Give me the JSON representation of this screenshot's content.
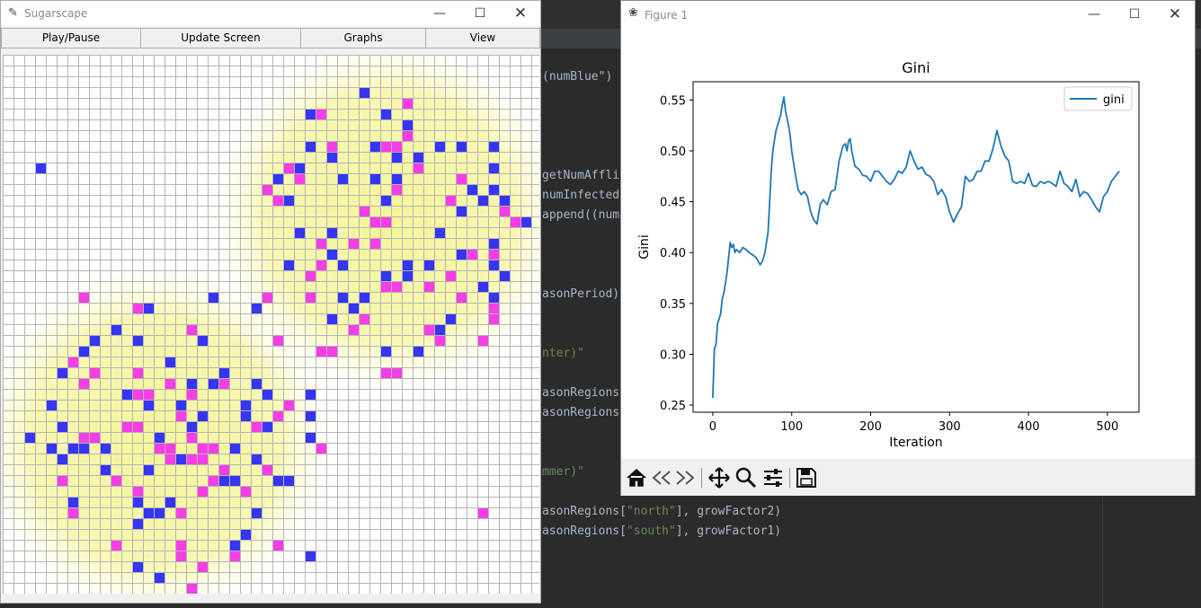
{
  "ide": {
    "code_lines": [
      {
        "text": "(numBlue\")",
        "str": ""
      },
      {
        "text": "getNumAffli",
        "str": ""
      },
      {
        "text": "numInfected",
        "str": ""
      },
      {
        "text": "append((num",
        "str": ""
      },
      {
        "text": "asonPeriod))",
        "str": ""
      },
      {
        "text": "",
        "str": "nter)\""
      },
      {
        "text": "asonRegions",
        "str": ""
      },
      {
        "text": "asonRegions",
        "str": ""
      },
      {
        "text": "",
        "str": "mmer)\""
      },
      {
        "text": "asonRegions[",
        "str": "\"north\"",
        "tail": "], growFactor2)"
      },
      {
        "text": "asonRegions[",
        "str": "\"south\"",
        "tail": "], growFactor1)"
      }
    ]
  },
  "sugarscape": {
    "title": "Sugarscape",
    "buttons": [
      "Play/Pause",
      "Update Screen",
      "Graphs",
      "View"
    ],
    "colors": {
      "blue_agent": "#3535f2",
      "pink_agent": "#f53ee6",
      "sugar_high": "#f5f59a",
      "sugar_low": "#ffffe6"
    },
    "grid": {
      "cols": 50,
      "rows": 50,
      "blue_cells": [
        [
          33,
          3
        ],
        [
          28,
          5
        ],
        [
          35,
          5
        ],
        [
          37,
          6
        ],
        [
          28,
          8
        ],
        [
          34,
          8
        ],
        [
          40,
          8
        ],
        [
          42,
          8
        ],
        [
          45,
          8
        ],
        [
          30,
          9
        ],
        [
          36,
          9
        ],
        [
          38,
          9
        ],
        [
          45,
          10
        ],
        [
          3,
          10
        ],
        [
          27,
          10
        ],
        [
          25,
          11
        ],
        [
          31,
          11
        ],
        [
          34,
          11
        ],
        [
          36,
          11
        ],
        [
          43,
          12
        ],
        [
          45,
          12
        ],
        [
          26,
          13
        ],
        [
          35,
          13
        ],
        [
          44,
          13
        ],
        [
          46,
          13
        ],
        [
          33,
          14
        ],
        [
          42,
          14
        ],
        [
          48,
          15
        ],
        [
          27,
          16
        ],
        [
          30,
          16
        ],
        [
          40,
          16
        ],
        [
          45,
          17
        ],
        [
          30,
          18
        ],
        [
          42,
          18
        ],
        [
          26,
          19
        ],
        [
          29,
          19
        ],
        [
          31,
          19
        ],
        [
          37,
          19
        ],
        [
          39,
          19
        ],
        [
          45,
          19
        ],
        [
          35,
          20
        ],
        [
          37,
          20
        ],
        [
          46,
          20
        ],
        [
          44,
          21
        ],
        [
          31,
          22
        ],
        [
          33,
          22
        ],
        [
          45,
          22
        ],
        [
          19,
          22
        ],
        [
          32,
          23
        ],
        [
          13,
          23
        ],
        [
          23,
          23
        ],
        [
          30,
          24
        ],
        [
          41,
          24
        ],
        [
          40,
          25
        ],
        [
          10,
          25
        ],
        [
          8,
          26
        ],
        [
          12,
          26
        ],
        [
          18,
          26
        ],
        [
          7,
          27
        ],
        [
          30,
          27
        ],
        [
          35,
          27
        ],
        [
          38,
          27
        ],
        [
          15,
          28
        ],
        [
          5,
          29
        ],
        [
          20,
          29
        ],
        [
          17,
          30
        ],
        [
          19,
          30
        ],
        [
          23,
          30
        ],
        [
          28,
          31
        ],
        [
          24,
          31
        ],
        [
          11,
          31
        ],
        [
          4,
          32
        ],
        [
          13,
          32
        ],
        [
          16,
          32
        ],
        [
          22,
          32
        ],
        [
          26,
          32
        ],
        [
          18,
          33
        ],
        [
          22,
          33
        ],
        [
          28,
          33
        ],
        [
          5,
          34
        ],
        [
          12,
          34
        ],
        [
          17,
          34
        ],
        [
          24,
          34
        ],
        [
          2,
          35
        ],
        [
          14,
          35
        ],
        [
          28,
          35
        ],
        [
          4,
          36
        ],
        [
          6,
          36
        ],
        [
          7,
          36
        ],
        [
          9,
          36
        ],
        [
          21,
          36
        ],
        [
          16,
          37
        ],
        [
          5,
          37
        ],
        [
          23,
          37
        ],
        [
          13,
          38
        ],
        [
          9,
          38
        ],
        [
          20,
          39
        ],
        [
          21,
          39
        ],
        [
          25,
          39
        ],
        [
          26,
          39
        ],
        [
          6,
          41
        ],
        [
          12,
          41
        ],
        [
          15,
          41
        ],
        [
          13,
          42
        ],
        [
          14,
          42
        ],
        [
          23,
          42
        ],
        [
          12,
          43
        ],
        [
          22,
          44
        ],
        [
          21,
          45
        ],
        [
          28,
          46
        ],
        [
          12,
          47
        ],
        [
          14,
          48
        ]
      ],
      "pink_cells": [
        [
          37,
          4
        ],
        [
          29,
          5
        ],
        [
          37,
          7
        ],
        [
          35,
          8
        ],
        [
          36,
          8
        ],
        [
          30,
          8
        ],
        [
          26,
          10
        ],
        [
          38,
          10
        ],
        [
          27,
          11
        ],
        [
          42,
          11
        ],
        [
          24,
          12
        ],
        [
          36,
          12
        ],
        [
          25,
          13
        ],
        [
          41,
          13
        ],
        [
          33,
          14
        ],
        [
          46,
          14
        ],
        [
          47,
          15
        ],
        [
          34,
          15
        ],
        [
          35,
          15
        ],
        [
          29,
          17
        ],
        [
          32,
          17
        ],
        [
          34,
          17
        ],
        [
          43,
          18
        ],
        [
          45,
          18
        ],
        [
          29,
          19
        ],
        [
          28,
          20
        ],
        [
          41,
          20
        ],
        [
          39,
          21
        ],
        [
          35,
          21
        ],
        [
          36,
          21
        ],
        [
          24,
          22
        ],
        [
          28,
          22
        ],
        [
          42,
          22
        ],
        [
          7,
          22
        ],
        [
          12,
          23
        ],
        [
          45,
          23
        ],
        [
          33,
          24
        ],
        [
          45,
          24
        ],
        [
          32,
          25
        ],
        [
          39,
          25
        ],
        [
          17,
          25
        ],
        [
          40,
          26
        ],
        [
          44,
          26
        ],
        [
          25,
          26
        ],
        [
          29,
          27
        ],
        [
          30,
          27
        ],
        [
          6,
          28
        ],
        [
          12,
          29
        ],
        [
          8,
          29
        ],
        [
          35,
          29
        ],
        [
          36,
          29
        ],
        [
          20,
          30
        ],
        [
          7,
          30
        ],
        [
          15,
          30
        ],
        [
          12,
          31
        ],
        [
          17,
          31
        ],
        [
          13,
          31
        ],
        [
          26,
          32
        ],
        [
          25,
          33
        ],
        [
          16,
          33
        ],
        [
          11,
          34
        ],
        [
          12,
          34
        ],
        [
          23,
          34
        ],
        [
          17,
          35
        ],
        [
          7,
          35
        ],
        [
          14,
          36
        ],
        [
          18,
          36
        ],
        [
          19,
          36
        ],
        [
          15,
          36
        ],
        [
          8,
          35
        ],
        [
          29,
          36
        ],
        [
          15,
          37
        ],
        [
          17,
          37
        ],
        [
          18,
          37
        ],
        [
          20,
          38
        ],
        [
          24,
          38
        ],
        [
          5,
          39
        ],
        [
          10,
          39
        ],
        [
          19,
          39
        ],
        [
          18,
          40
        ],
        [
          12,
          40
        ],
        [
          22,
          40
        ],
        [
          44,
          42
        ],
        [
          6,
          42
        ],
        [
          16,
          42
        ],
        [
          10,
          45
        ],
        [
          16,
          45
        ],
        [
          25,
          45
        ],
        [
          16,
          46
        ],
        [
          21,
          46
        ],
        [
          18,
          47
        ],
        [
          17,
          49
        ]
      ]
    }
  },
  "figure": {
    "title": "Figure 1",
    "toolbar_icons": [
      "home-icon",
      "back-icon",
      "forward-icon",
      "pan-icon",
      "zoom-icon",
      "configure-subplots-icon",
      "save-icon"
    ]
  },
  "chart_data": {
    "type": "line",
    "title": "Gini",
    "xlabel": "Iteration",
    "ylabel": "Gini",
    "xlim": [
      -25,
      540
    ],
    "ylim": [
      0.243,
      0.568
    ],
    "xticks": [
      0,
      100,
      200,
      300,
      400,
      500
    ],
    "yticks": [
      0.25,
      0.3,
      0.35,
      0.4,
      0.45,
      0.5,
      0.55
    ],
    "ytick_labels": [
      "0.25",
      "0.30",
      "0.35",
      "0.40",
      "0.45",
      "0.50",
      "0.55"
    ],
    "legend": {
      "position": "top-right"
    },
    "series": [
      {
        "name": "gini",
        "color": "#1f77b4",
        "x": [
          0,
          2,
          4,
          6,
          8,
          10,
          12,
          14,
          16,
          18,
          20,
          22,
          24,
          26,
          28,
          30,
          34,
          38,
          42,
          46,
          50,
          55,
          60,
          63,
          66,
          70,
          72,
          74,
          76,
          78,
          80,
          82,
          84,
          86,
          88,
          90,
          92,
          94,
          96,
          98,
          100,
          104,
          108,
          112,
          116,
          120,
          124,
          128,
          132,
          136,
          140,
          145,
          150,
          155,
          160,
          165,
          168,
          170,
          172,
          174,
          176,
          180,
          185,
          190,
          195,
          200,
          205,
          210,
          215,
          220,
          225,
          230,
          235,
          240,
          245,
          250,
          255,
          260,
          265,
          270,
          275,
          280,
          285,
          290,
          295,
          300,
          305,
          310,
          315,
          320,
          325,
          330,
          335,
          340,
          345,
          350,
          355,
          360,
          365,
          370,
          375,
          380,
          385,
          390,
          395,
          400,
          405,
          410,
          415,
          420,
          425,
          430,
          435,
          440,
          445,
          450,
          455,
          460,
          465,
          470,
          475,
          480,
          485,
          490,
          495,
          500,
          505,
          510,
          515
        ],
        "y": [
          0.257,
          0.305,
          0.31,
          0.33,
          0.335,
          0.34,
          0.355,
          0.36,
          0.37,
          0.38,
          0.395,
          0.41,
          0.405,
          0.408,
          0.4,
          0.403,
          0.4,
          0.405,
          0.403,
          0.4,
          0.398,
          0.395,
          0.388,
          0.392,
          0.4,
          0.42,
          0.45,
          0.48,
          0.5,
          0.51,
          0.52,
          0.525,
          0.53,
          0.535,
          0.545,
          0.553,
          0.54,
          0.532,
          0.525,
          0.515,
          0.5,
          0.48,
          0.462,
          0.457,
          0.46,
          0.455,
          0.44,
          0.432,
          0.428,
          0.447,
          0.452,
          0.447,
          0.46,
          0.462,
          0.49,
          0.505,
          0.507,
          0.5,
          0.51,
          0.512,
          0.5,
          0.485,
          0.482,
          0.476,
          0.475,
          0.47,
          0.48,
          0.48,
          0.475,
          0.47,
          0.467,
          0.472,
          0.48,
          0.478,
          0.484,
          0.5,
          0.49,
          0.482,
          0.484,
          0.477,
          0.475,
          0.47,
          0.457,
          0.462,
          0.455,
          0.44,
          0.43,
          0.438,
          0.445,
          0.475,
          0.47,
          0.472,
          0.48,
          0.48,
          0.49,
          0.49,
          0.502,
          0.52,
          0.505,
          0.495,
          0.49,
          0.47,
          0.468,
          0.47,
          0.468,
          0.478,
          0.466,
          0.465,
          0.47,
          0.468,
          0.47,
          0.468,
          0.465,
          0.48,
          0.468,
          0.465,
          0.46,
          0.472,
          0.455,
          0.46,
          0.458,
          0.452,
          0.445,
          0.44,
          0.455,
          0.46,
          0.47,
          0.475,
          0.48
        ]
      }
    ]
  }
}
